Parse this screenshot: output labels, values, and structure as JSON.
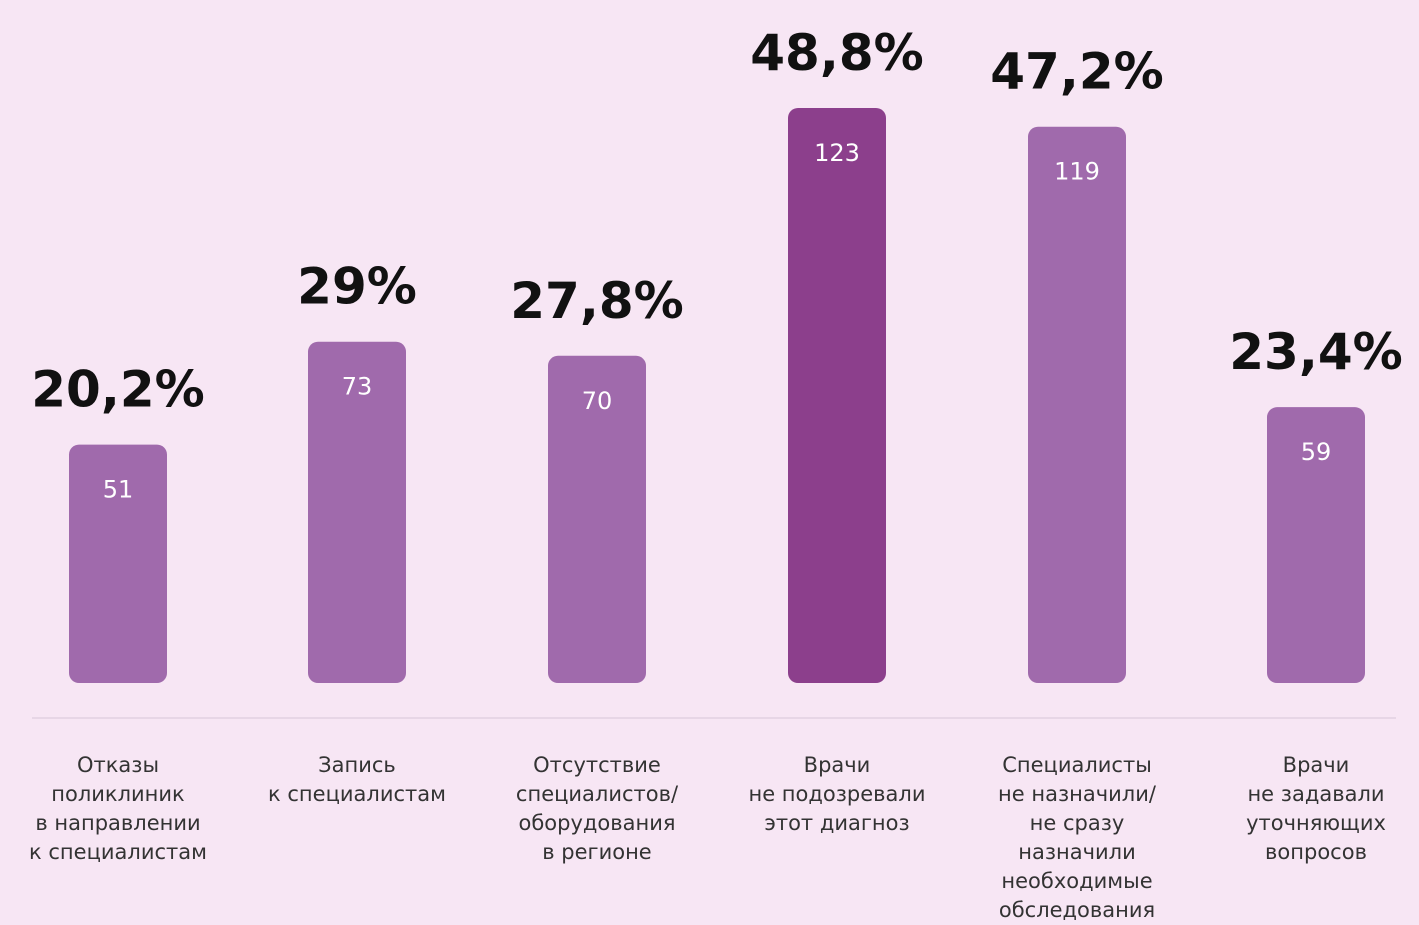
{
  "colors": {
    "background": "#f7e6f4",
    "bar": "#a06aac",
    "bar_highlight": "#8c3f8c",
    "baseline": "#e7d6e6",
    "percent_text": "#111111",
    "count_text": "#ffffff",
    "category_text": "#333333"
  },
  "chart_data": {
    "type": "bar",
    "title": "",
    "xlabel": "",
    "ylabel": "",
    "ylim": [
      0,
      123
    ],
    "grid": false,
    "legend": "none",
    "highlight_index": 3,
    "categories": [
      [
        "Отказы",
        "поликлиник",
        "в направлении",
        "к специалистам"
      ],
      [
        "Запись",
        "к специалистам"
      ],
      [
        "Отсутствие",
        "специалистов/",
        "оборудования",
        "в регионе"
      ],
      [
        "Врачи",
        "не подозревали",
        "этот диагноз"
      ],
      [
        "Специалисты",
        "не назначили/",
        "не сразу",
        "назначили",
        "необходимые",
        "обследования"
      ],
      [
        "Врачи",
        "не задавали",
        "уточняющих",
        "вопросов"
      ]
    ],
    "series": [
      {
        "values": [
          51,
          73,
          70,
          123,
          119,
          59
        ]
      }
    ],
    "percent_labels": [
      "20,2%",
      "29%",
      "27,8%",
      "48,8%",
      "47,2%",
      "23,4%"
    ],
    "count_labels": [
      "51",
      "73",
      "70",
      "123",
      "119",
      "59"
    ]
  }
}
